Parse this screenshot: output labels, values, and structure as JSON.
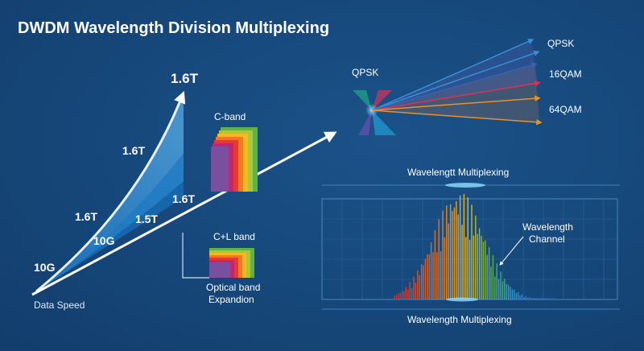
{
  "title": "DWDM Wavelength Division Multiplexing",
  "speed_diagram": {
    "top_label": "1.6T",
    "curve_labels": [
      "1.6T",
      "1.6T",
      "10G"
    ],
    "inner_labels": [
      "10G",
      "1.5T",
      "1.6T"
    ],
    "axis_label": "Data Speed"
  },
  "bands": {
    "c_band": "C-band",
    "cl_band": "C+L band",
    "expansion_label_line1": "Optical band",
    "expansion_label_line2": "Expandion",
    "colors": [
      "#7b4fa0",
      "#c2266e",
      "#e8392f",
      "#f07a21",
      "#f6b81c",
      "#a8c83a",
      "#5fb14a"
    ]
  },
  "modulation": {
    "source_label": "QPSK",
    "labels": [
      "QPSK",
      "16QAM",
      "64QAM"
    ],
    "arrow_colors": [
      "#3b8fd6",
      "#3b8fd6",
      "#3a62b0",
      "#e0305a",
      "#e8922a",
      "#e8922a"
    ]
  },
  "spectrum": {
    "top_label": "Wavelengtt Multiplexing",
    "bottom_label": "Wavelength Multiplexing",
    "channel_label_line1": "Wavelength",
    "channel_label_line2": "Channel"
  }
}
